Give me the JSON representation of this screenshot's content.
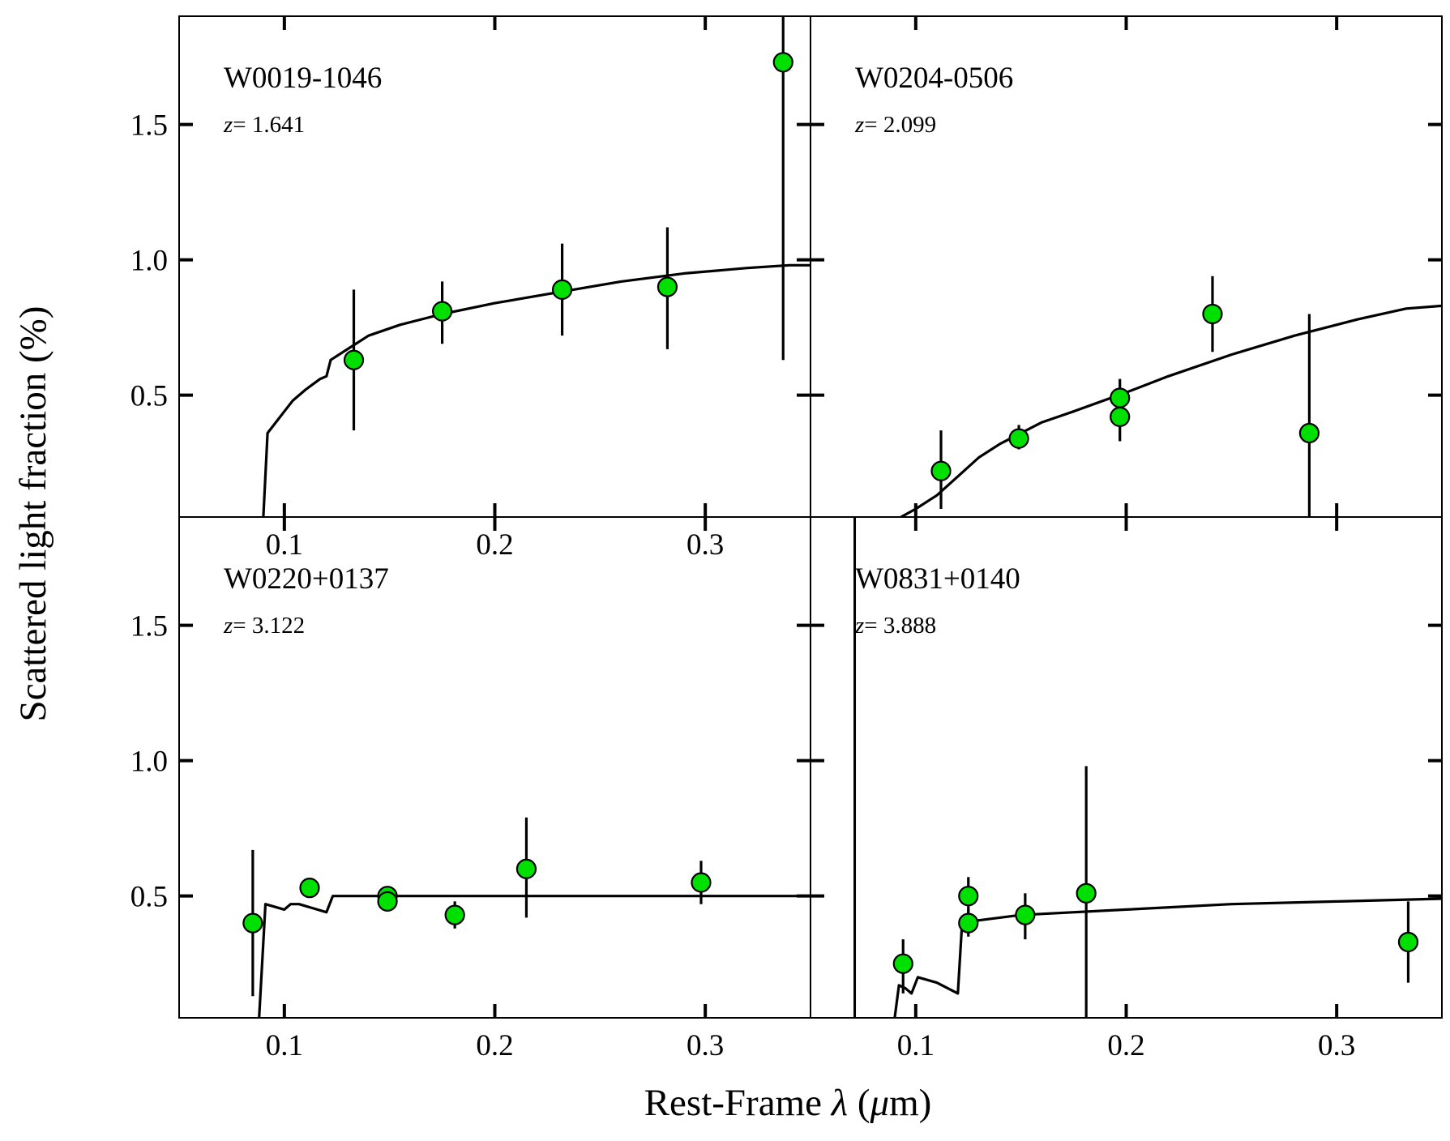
{
  "figure": {
    "xlabel_prefix": "Rest-Frame ",
    "xlabel_var": "λ",
    "xlabel_open": " (",
    "xlabel_unit_mu": "μ",
    "xlabel_unit_rest": "m)",
    "ylabel": "Scattered light fraction (%)",
    "marker_color": "#00e000",
    "line_color": "#000000"
  },
  "chart_data": [
    {
      "type": "scatter",
      "panel": "top-left",
      "label": "W0019-1046",
      "z_prefix": "z",
      "z_value": "= 1.641",
      "xlim": [
        0.05,
        0.35
      ],
      "ylim": [
        0.05,
        1.9
      ],
      "xticks": [
        0.1,
        0.2,
        0.3
      ],
      "xtick_labels": [
        "0.1",
        "0.2",
        "0.3"
      ],
      "yticks": [
        0.5,
        1.0,
        1.5
      ],
      "ytick_labels": [
        "0.5",
        "1.0",
        "1.5"
      ],
      "points": [
        {
          "x": 0.133,
          "y": 0.63,
          "ylo": 0.37,
          "yhi": 0.89
        },
        {
          "x": 0.175,
          "y": 0.81,
          "ylo": 0.69,
          "yhi": 0.92
        },
        {
          "x": 0.232,
          "y": 0.89,
          "ylo": 0.72,
          "yhi": 1.06
        },
        {
          "x": 0.282,
          "y": 0.9,
          "ylo": 0.67,
          "yhi": 1.12
        },
        {
          "x": 0.337,
          "y": 1.73,
          "ylo": 0.63,
          "yhi": 1.9
        }
      ],
      "model": {
        "x": [
          0.09,
          0.092,
          0.095,
          0.1,
          0.104,
          0.11,
          0.117,
          0.12,
          0.122,
          0.13,
          0.14,
          0.155,
          0.175,
          0.2,
          0.23,
          0.26,
          0.29,
          0.32,
          0.34,
          0.35
        ],
        "y": [
          0.05,
          0.36,
          0.39,
          0.44,
          0.48,
          0.52,
          0.56,
          0.57,
          0.63,
          0.67,
          0.72,
          0.76,
          0.8,
          0.84,
          0.88,
          0.92,
          0.95,
          0.97,
          0.98,
          0.98
        ]
      }
    },
    {
      "type": "scatter",
      "panel": "top-right",
      "label": "W0204-0506",
      "z_prefix": "z",
      "z_value": "= 2.099",
      "xlim": [
        0.05,
        0.35
      ],
      "ylim": [
        0.05,
        1.9
      ],
      "xticks": [
        0.1,
        0.2,
        0.3
      ],
      "points": [
        {
          "x": 0.112,
          "y": 0.22,
          "ylo": 0.08,
          "yhi": 0.37
        },
        {
          "x": 0.149,
          "y": 0.34,
          "ylo": 0.3,
          "yhi": 0.39
        },
        {
          "x": 0.197,
          "y": 0.49,
          "ylo": 0.43,
          "yhi": 0.56
        },
        {
          "x": 0.197,
          "y": 0.42,
          "ylo": 0.33,
          "yhi": 0.48
        },
        {
          "x": 0.241,
          "y": 0.8,
          "ylo": 0.66,
          "yhi": 0.94
        },
        {
          "x": 0.287,
          "y": 0.36,
          "ylo": 0.05,
          "yhi": 0.8
        }
      ],
      "model": {
        "x": [
          0.093,
          0.1,
          0.11,
          0.12,
          0.13,
          0.14,
          0.15,
          0.16,
          0.175,
          0.2,
          0.22,
          0.25,
          0.28,
          0.31,
          0.333,
          0.35
        ],
        "y": [
          0.05,
          0.08,
          0.13,
          0.2,
          0.27,
          0.32,
          0.36,
          0.4,
          0.44,
          0.51,
          0.57,
          0.65,
          0.72,
          0.78,
          0.82,
          0.83
        ]
      }
    },
    {
      "type": "scatter",
      "panel": "bottom-left",
      "label": "W0220+0137",
      "z_prefix": "z",
      "z_value": "= 3.122",
      "xlim": [
        0.05,
        0.35
      ],
      "ylim": [
        0.05,
        1.9
      ],
      "xticks": [
        0.1,
        0.2,
        0.3
      ],
      "xtick_labels": [
        "0.1",
        "0.2",
        "0.3"
      ],
      "yticks": [
        0.5,
        1.0,
        1.5
      ],
      "ytick_labels": [
        "0.5",
        "1.0",
        "1.5"
      ],
      "points": [
        {
          "x": 0.085,
          "y": 0.4,
          "ylo": 0.13,
          "yhi": 0.67
        },
        {
          "x": 0.112,
          "y": 0.53,
          "ylo": 0.5,
          "yhi": 0.56
        },
        {
          "x": 0.149,
          "y": 0.5,
          "ylo": 0.47,
          "yhi": 0.53
        },
        {
          "x": 0.149,
          "y": 0.48,
          "ylo": 0.45,
          "yhi": 0.51
        },
        {
          "x": 0.181,
          "y": 0.43,
          "ylo": 0.38,
          "yhi": 0.48
        },
        {
          "x": 0.215,
          "y": 0.6,
          "ylo": 0.42,
          "yhi": 0.79
        },
        {
          "x": 0.298,
          "y": 0.55,
          "ylo": 0.47,
          "yhi": 0.63
        }
      ],
      "model": {
        "x": [
          0.088,
          0.091,
          0.1,
          0.103,
          0.107,
          0.12,
          0.123,
          0.13,
          0.2,
          0.3,
          0.35
        ],
        "y": [
          0.05,
          0.47,
          0.45,
          0.47,
          0.47,
          0.44,
          0.5,
          0.5,
          0.5,
          0.5,
          0.5
        ]
      }
    },
    {
      "type": "scatter",
      "panel": "bottom-right",
      "label": "W0831+0140",
      "z_prefix": "z",
      "z_value": "= 3.888",
      "xlim": [
        0.05,
        0.35
      ],
      "ylim": [
        0.05,
        1.9
      ],
      "xticks": [
        0.1,
        0.2,
        0.3
      ],
      "xtick_labels": [
        "0.1",
        "0.2",
        "0.3"
      ],
      "vertical_line_x": 0.071,
      "points": [
        {
          "x": 0.094,
          "y": 0.25,
          "ylo": 0.14,
          "yhi": 0.34
        },
        {
          "x": 0.125,
          "y": 0.5,
          "ylo": 0.43,
          "yhi": 0.57
        },
        {
          "x": 0.125,
          "y": 0.4,
          "ylo": 0.35,
          "yhi": 0.45
        },
        {
          "x": 0.152,
          "y": 0.43,
          "ylo": 0.34,
          "yhi": 0.51
        },
        {
          "x": 0.181,
          "y": 0.51,
          "ylo": 0.05,
          "yhi": 0.98
        },
        {
          "x": 0.334,
          "y": 0.33,
          "ylo": 0.18,
          "yhi": 0.48
        }
      ],
      "model": {
        "x": [
          0.09,
          0.092,
          0.095,
          0.098,
          0.101,
          0.11,
          0.12,
          0.122,
          0.124,
          0.13,
          0.15,
          0.2,
          0.25,
          0.3,
          0.35
        ],
        "y": [
          0.05,
          0.17,
          0.16,
          0.14,
          0.2,
          0.18,
          0.14,
          0.4,
          0.4,
          0.41,
          0.43,
          0.45,
          0.47,
          0.48,
          0.49
        ]
      }
    }
  ]
}
